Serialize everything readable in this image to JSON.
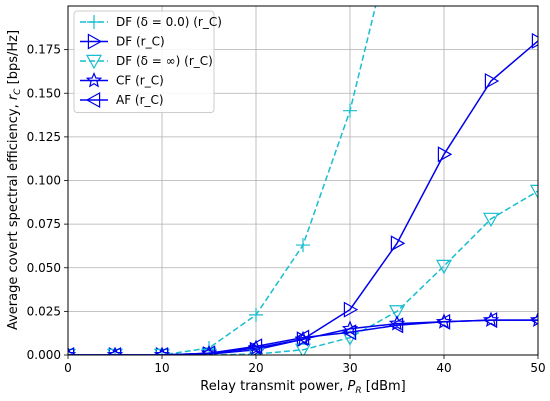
{
  "chart_data": {
    "type": "line",
    "xlabel": "Relay transmit power, P_R [dBm]",
    "ylabel": "Average covert spectral efficiency, r_C [bps/Hz]",
    "xlim": [
      0,
      50
    ],
    "ylim": [
      0,
      0.2
    ],
    "xticks": [
      0,
      10,
      20,
      30,
      40,
      50
    ],
    "xtick_labels": [
      "0",
      "10",
      "20",
      "30",
      "40",
      "50"
    ],
    "yticks": [
      0,
      0.025,
      0.05,
      0.075,
      0.1,
      0.125,
      0.15,
      0.175
    ],
    "ytick_labels": [
      "0.000",
      "0.025",
      "0.050",
      "0.075",
      "0.100",
      "0.125",
      "0.150",
      "0.175"
    ],
    "grid": true,
    "legend_position": "top-left",
    "series": [
      {
        "name": "DF (δ = 0.0) (r_C)",
        "color": "#17becf",
        "line_style": "dashed",
        "marker": "plus",
        "x": [
          0,
          5,
          10,
          15,
          20,
          25,
          30,
          35
        ],
        "y": [
          0.0,
          0.0,
          0.0,
          0.004,
          0.023,
          0.063,
          0.14,
          0.25
        ]
      },
      {
        "name": "DF (r_C)",
        "color": "#0000ee",
        "line_style": "solid",
        "marker": "triangle-right",
        "x": [
          0,
          5,
          10,
          15,
          20,
          25,
          30,
          35,
          40,
          45,
          50
        ],
        "y": [
          0.0,
          0.0,
          0.0,
          0.0005,
          0.003,
          0.009,
          0.026,
          0.064,
          0.115,
          0.157,
          0.18
        ]
      },
      {
        "name": "DF (δ = ∞) (r_C)",
        "color": "#17becf",
        "line_style": "dashed",
        "marker": "triangle-down",
        "x": [
          0,
          5,
          10,
          15,
          20,
          25,
          30,
          35,
          40,
          45,
          50
        ],
        "y": [
          0.0,
          0.0,
          0.0,
          0.0,
          0.0005,
          0.003,
          0.01,
          0.025,
          0.051,
          0.078,
          0.094
        ]
      },
      {
        "name": "CF (r_C)",
        "color": "#0000ee",
        "line_style": "solid",
        "marker": "star",
        "x": [
          0,
          5,
          10,
          15,
          20,
          25,
          30,
          35,
          40,
          45,
          50
        ],
        "y": [
          0.0,
          0.0,
          0.0,
          0.001,
          0.004,
          0.009,
          0.015,
          0.018,
          0.019,
          0.02,
          0.02
        ]
      },
      {
        "name": "AF (r_C)",
        "color": "#0000ee",
        "line_style": "solid",
        "marker": "triangle-left",
        "x": [
          0,
          5,
          10,
          15,
          20,
          25,
          30,
          35,
          40,
          45,
          50
        ],
        "y": [
          0.0,
          0.0,
          0.0,
          0.001,
          0.005,
          0.01,
          0.013,
          0.017,
          0.019,
          0.02,
          0.02
        ]
      }
    ]
  }
}
